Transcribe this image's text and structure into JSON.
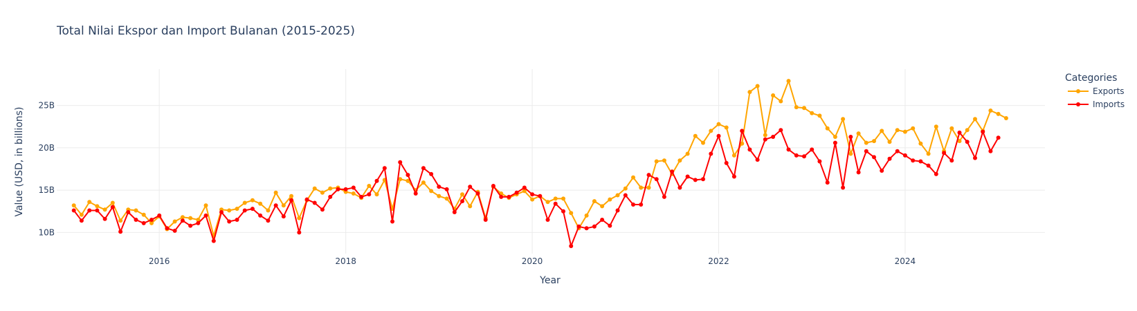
{
  "chart_data": {
    "type": "line",
    "title": "Total Nilai Ekspor dan Import Bulanan (2015-2025)",
    "xlabel": "Year",
    "ylabel": "Value (USD, in billions)",
    "x_ticks": [
      {
        "value": 2016,
        "label": "2016"
      },
      {
        "value": 2018,
        "label": "2018"
      },
      {
        "value": 2020,
        "label": "2020"
      },
      {
        "value": 2022,
        "label": "2022"
      },
      {
        "value": 2024,
        "label": "2024"
      }
    ],
    "y_ticks": [
      {
        "value": 10,
        "label": "10B"
      },
      {
        "value": 15,
        "label": "15B"
      },
      {
        "value": 20,
        "label": "20B"
      },
      {
        "value": 25,
        "label": "25B"
      }
    ],
    "xlim": [
      2014.9,
      2025.5
    ],
    "ylim": [
      7.5,
      29.3
    ],
    "grid": true,
    "legend": {
      "title": "Categories",
      "position": "top-right"
    },
    "x_start": "2015-02",
    "series": [
      {
        "name": "Exports",
        "color": "#ffa500",
        "values": [
          13.2,
          12.1,
          13.6,
          13.1,
          12.7,
          13.5,
          11.4,
          12.7,
          12.6,
          12.1,
          11.1,
          11.9,
          10.4,
          11.3,
          11.8,
          11.7,
          11.5,
          13.2,
          9.6,
          12.7,
          12.6,
          12.8,
          13.5,
          13.8,
          13.4,
          12.6,
          14.7,
          13.2,
          14.3,
          11.7,
          13.8,
          15.2,
          14.7,
          15.2,
          15.3,
          14.8,
          14.6,
          14.1,
          15.5,
          14.5,
          16.2,
          12.8,
          16.3,
          16.1,
          15.0,
          15.9,
          14.9,
          14.3,
          14.0,
          12.8,
          14.5,
          13.1,
          14.8,
          11.7,
          15.4,
          14.6,
          14.1,
          14.5,
          14.9,
          13.9,
          14.3,
          13.6,
          14.0,
          14.0,
          12.3,
          10.5,
          12.0,
          13.7,
          13.1,
          13.9,
          14.4,
          15.2,
          16.5,
          15.3,
          15.3,
          18.4,
          18.5,
          16.9,
          18.5,
          19.3,
          21.4,
          20.6,
          22.0,
          22.8,
          22.4,
          19.1,
          20.5,
          26.6,
          27.3,
          21.5,
          26.2,
          25.5,
          27.9,
          24.8,
          24.7,
          24.1,
          23.8,
          22.3,
          21.3,
          23.4,
          19.3,
          21.7,
          20.6,
          20.8,
          22.0,
          20.7,
          22.1,
          21.9,
          22.3,
          20.5,
          19.3,
          22.5,
          19.6,
          22.3,
          20.8,
          22.1,
          23.4,
          22.0,
          24.4,
          24.0,
          23.5
        ]
      },
      {
        "name": "Imports",
        "color": "#ff0000",
        "values": [
          12.6,
          11.4,
          12.6,
          12.6,
          11.6,
          13.0,
          10.1,
          12.4,
          11.5,
          11.1,
          11.5,
          12.0,
          10.5,
          10.2,
          11.4,
          10.8,
          11.1,
          12.0,
          9.0,
          12.4,
          11.3,
          11.5,
          12.6,
          12.8,
          12.0,
          11.4,
          13.2,
          11.9,
          13.8,
          10.0,
          13.9,
          13.5,
          12.7,
          14.2,
          15.1,
          15.1,
          15.3,
          14.2,
          14.5,
          16.1,
          17.6,
          11.3,
          18.3,
          16.8,
          14.6,
          17.6,
          16.9,
          15.4,
          15.1,
          12.4,
          13.7,
          15.4,
          14.6,
          11.5,
          15.5,
          14.2,
          14.2,
          14.7,
          15.3,
          14.5,
          14.3,
          11.5,
          13.4,
          12.5,
          8.4,
          10.7,
          10.5,
          10.7,
          11.5,
          10.8,
          12.6,
          14.4,
          13.3,
          13.3,
          16.8,
          16.3,
          14.2,
          17.2,
          15.3,
          16.6,
          16.2,
          16.3,
          19.3,
          21.4,
          18.2,
          16.6,
          22.0,
          19.8,
          18.6,
          21.0,
          21.3,
          22.1,
          19.8,
          19.1,
          19.0,
          19.8,
          18.4,
          15.9,
          20.6,
          15.3,
          21.3,
          17.1,
          19.6,
          18.9,
          17.3,
          18.7,
          19.6,
          19.1,
          18.5,
          18.4,
          17.9,
          16.9,
          19.4,
          18.5,
          21.8,
          20.7,
          18.8,
          21.9,
          19.6,
          21.2
        ]
      }
    ]
  }
}
